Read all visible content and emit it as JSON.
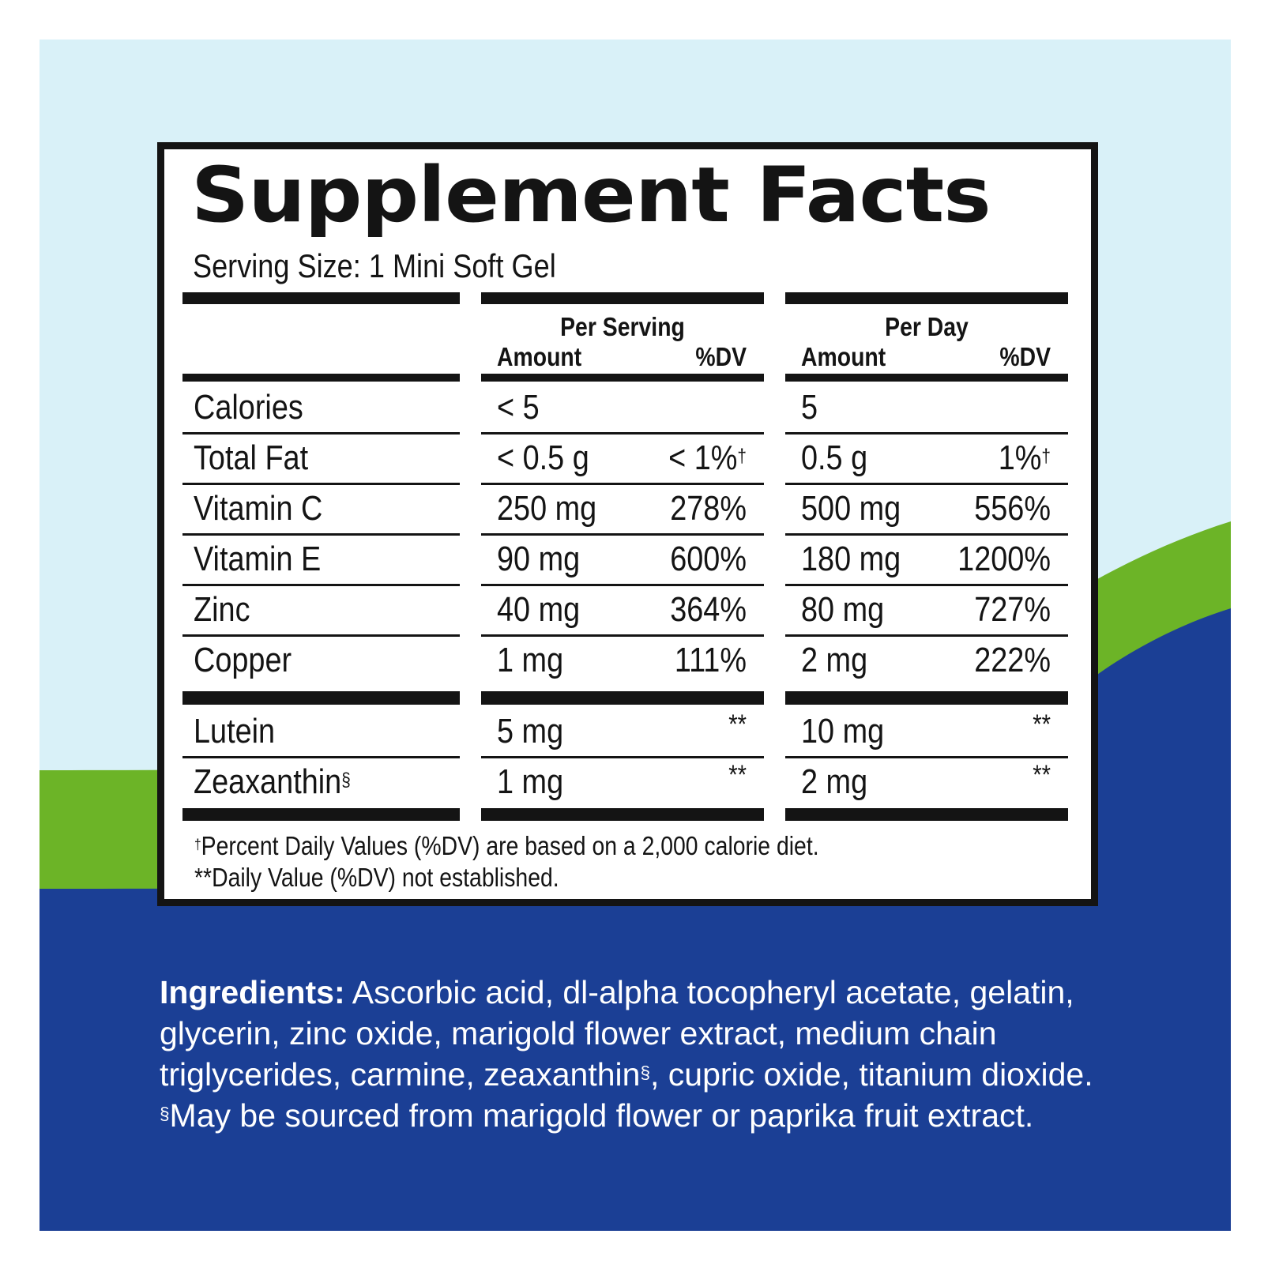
{
  "colors": {
    "sky": "#d9f1f8",
    "green": "#6cb427",
    "navy": "#1b3f95",
    "ink": "#141414",
    "panel": "#ffffff"
  },
  "label": {
    "title": "Supplement Facts",
    "serving_size": "Serving Size: 1 Mini Soft Gel",
    "groups": [
      {
        "name": "Per Serving",
        "amount_header": "Amount",
        "dv_header": "%DV"
      },
      {
        "name": "Per Day",
        "amount_header": "Amount",
        "dv_header": "%DV"
      }
    ],
    "rows": [
      {
        "nutrient": "Calories",
        "nutrient_mark": "",
        "serving_amount": "< 5",
        "serving_dv": "",
        "serving_dv_mark": "",
        "day_amount": "5",
        "day_dv": "",
        "day_dv_mark": ""
      },
      {
        "nutrient": "Total Fat",
        "nutrient_mark": "",
        "serving_amount": "< 0.5 g",
        "serving_dv": "< 1%",
        "serving_dv_mark": "†",
        "day_amount": "0.5 g",
        "day_dv": "1%",
        "day_dv_mark": "†"
      },
      {
        "nutrient": "Vitamin C",
        "nutrient_mark": "",
        "serving_amount": "250 mg",
        "serving_dv": "278%",
        "serving_dv_mark": "",
        "day_amount": "500 mg",
        "day_dv": "556%",
        "day_dv_mark": ""
      },
      {
        "nutrient": "Vitamin E",
        "nutrient_mark": "",
        "serving_amount": "90 mg",
        "serving_dv": "600%",
        "serving_dv_mark": "",
        "day_amount": "180 mg",
        "day_dv": "1200%",
        "day_dv_mark": ""
      },
      {
        "nutrient": "Zinc",
        "nutrient_mark": "",
        "serving_amount": "40 mg",
        "serving_dv": "364%",
        "serving_dv_mark": "",
        "day_amount": "80 mg",
        "day_dv": "727%",
        "day_dv_mark": ""
      },
      {
        "nutrient": "Copper",
        "nutrient_mark": "",
        "serving_amount": "1 mg",
        "serving_dv": "111%",
        "serving_dv_mark": "",
        "day_amount": "2 mg",
        "day_dv": "222%",
        "day_dv_mark": ""
      },
      {
        "nutrient": "Lutein",
        "nutrient_mark": "",
        "serving_amount": "5 mg",
        "serving_dv": "**",
        "serving_dv_mark": "",
        "day_amount": "10 mg",
        "day_dv": "**",
        "day_dv_mark": ""
      },
      {
        "nutrient": "Zeaxanthin",
        "nutrient_mark": "§",
        "serving_amount": "1 mg",
        "serving_dv": "**",
        "serving_dv_mark": "",
        "day_amount": "2 mg",
        "day_dv": "**",
        "day_dv_mark": ""
      }
    ],
    "footnotes": [
      {
        "mark": "†",
        "text": "Percent Daily Values (%DV) are based on a 2,000 calorie diet."
      },
      {
        "mark": "",
        "text": "**Daily Value (%DV) not established."
      }
    ]
  },
  "ingredients": {
    "heading": "Ingredients:",
    "line1": "Ascorbic acid, dl-alpha tocopheryl acetate, gelatin,",
    "line2": "glycerin, zinc oxide, marigold flower extract, medium chain",
    "line3a": "triglycerides, carmine, zeaxanthin",
    "line3_mark": "§",
    "line3b": ", cupric oxide, titanium dioxide.",
    "line4_mark": "§",
    "line4": "May be sourced from marigold flower or paprika fruit extract."
  }
}
